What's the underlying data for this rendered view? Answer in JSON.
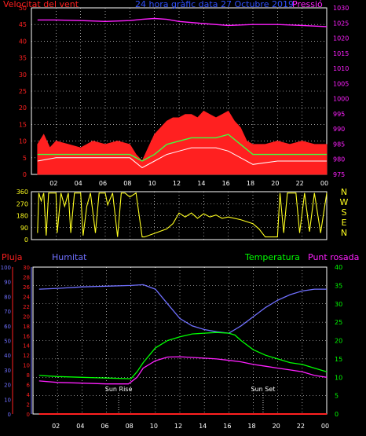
{
  "colors": {
    "wind": "#ff2020",
    "gust": "#ff2020",
    "wind_avg": "#40ff40",
    "wind_low": "#ffffff",
    "pressure": "#ff20ff",
    "direction": "#ffff20",
    "humidity": "#7070ff",
    "temperature": "#00ff00",
    "dewpoint": "#ff20ff",
    "rain": "#ff2020",
    "frame": "#ffffff",
    "grid": "#ffffff"
  },
  "chart_data": [
    {
      "type": "area",
      "title": "24 hora gràfic data 27 Octubre 2019",
      "ylabel_left": "Velocitat del vent",
      "ylabel_right": "Pressió",
      "x_ticks": [
        "02",
        "04",
        "06",
        "08",
        "10",
        "12",
        "14",
        "16",
        "18",
        "20",
        "22",
        "00"
      ],
      "y_left_ticks": [
        "0",
        "5",
        "10",
        "15",
        "20",
        "25",
        "30",
        "35",
        "40",
        "45",
        "50"
      ],
      "y_left_range": [
        0,
        50
      ],
      "y_right_ticks": [
        "975",
        "980",
        "985",
        "990",
        "995",
        "1000",
        "1005",
        "1010",
        "1015",
        "1020",
        "1025",
        "1030"
      ],
      "y_right_range": [
        975,
        1030
      ],
      "grid": true,
      "series": [
        {
          "name": "Pressió",
          "type": "line",
          "points": [
            [
              0.5,
              1026.0
            ],
            [
              2,
              1026.0
            ],
            [
              4,
              1025.8
            ],
            [
              6,
              1025.5
            ],
            [
              8,
              1025.8
            ],
            [
              9,
              1026.2
            ],
            [
              10,
              1026.5
            ],
            [
              11,
              1026.2
            ],
            [
              12,
              1025.5
            ],
            [
              14,
              1024.8
            ],
            [
              16,
              1024.2
            ],
            [
              18,
              1024.5
            ],
            [
              20,
              1024.5
            ],
            [
              22,
              1024.2
            ],
            [
              24,
              1023.8
            ]
          ]
        },
        {
          "name": "gust",
          "type": "area",
          "points": [
            [
              0.5,
              9
            ],
            [
              1,
              12
            ],
            [
              1.5,
              8
            ],
            [
              2,
              10
            ],
            [
              3,
              9
            ],
            [
              4,
              8
            ],
            [
              5,
              10
            ],
            [
              6,
              9
            ],
            [
              7,
              10
            ],
            [
              8,
              9
            ],
            [
              8.5,
              6
            ],
            [
              9,
              4
            ],
            [
              9.5,
              8
            ],
            [
              10,
              12
            ],
            [
              10.5,
              14
            ],
            [
              11,
              16
            ],
            [
              11.5,
              17
            ],
            [
              12,
              17
            ],
            [
              12.5,
              18
            ],
            [
              13,
              18
            ],
            [
              13.5,
              17
            ],
            [
              14,
              19
            ],
            [
              14.5,
              18
            ],
            [
              15,
              17
            ],
            [
              15.5,
              18
            ],
            [
              16,
              19
            ],
            [
              16.5,
              16
            ],
            [
              17,
              14
            ],
            [
              17.5,
              10
            ],
            [
              18,
              9
            ],
            [
              19,
              9
            ],
            [
              20,
              10
            ],
            [
              21,
              9
            ],
            [
              22,
              10
            ],
            [
              23,
              9
            ],
            [
              24,
              9
            ]
          ]
        },
        {
          "name": "average",
          "type": "line",
          "points": [
            [
              0.5,
              6
            ],
            [
              2,
              6
            ],
            [
              4,
              6
            ],
            [
              6,
              6
            ],
            [
              8,
              6
            ],
            [
              9,
              4
            ],
            [
              10,
              6
            ],
            [
              11,
              9
            ],
            [
              12,
              10
            ],
            [
              13,
              11
            ],
            [
              14,
              11
            ],
            [
              15,
              11
            ],
            [
              16,
              12
            ],
            [
              17,
              9
            ],
            [
              18,
              6
            ],
            [
              20,
              6
            ],
            [
              22,
              6
            ],
            [
              24,
              6
            ]
          ]
        },
        {
          "name": "low",
          "type": "line",
          "points": [
            [
              0.5,
              4
            ],
            [
              2,
              5
            ],
            [
              4,
              5
            ],
            [
              6,
              5
            ],
            [
              8,
              5
            ],
            [
              9,
              2
            ],
            [
              10,
              4
            ],
            [
              11,
              6
            ],
            [
              12,
              7
            ],
            [
              13,
              8
            ],
            [
              14,
              8
            ],
            [
              15,
              8
            ],
            [
              16,
              7
            ],
            [
              17,
              5
            ],
            [
              18,
              3
            ],
            [
              20,
              4
            ],
            [
              22,
              4
            ],
            [
              24,
              4
            ]
          ]
        }
      ]
    },
    {
      "type": "line",
      "ylabel_right": "N W S E N",
      "right_labels": [
        "N",
        "W",
        "S",
        "E",
        "N"
      ],
      "y_ticks": [
        "0",
        "90",
        "180",
        "270",
        "360"
      ],
      "y_range": [
        0,
        360
      ],
      "grid": true,
      "series": [
        {
          "name": "direction",
          "points": [
            [
              0.5,
              50
            ],
            [
              0.6,
              350
            ],
            [
              0.8,
              290
            ],
            [
              1.0,
              350
            ],
            [
              1.2,
              30
            ],
            [
              1.4,
              350
            ],
            [
              2.0,
              350
            ],
            [
              2.1,
              50
            ],
            [
              2.4,
              350
            ],
            [
              2.7,
              250
            ],
            [
              3.0,
              350
            ],
            [
              3.2,
              50
            ],
            [
              3.5,
              350
            ],
            [
              4.0,
              350
            ],
            [
              4.2,
              30
            ],
            [
              4.5,
              250
            ],
            [
              4.8,
              350
            ],
            [
              5.2,
              50
            ],
            [
              5.5,
              350
            ],
            [
              6.0,
              350
            ],
            [
              6.2,
              260
            ],
            [
              6.6,
              350
            ],
            [
              7.0,
              20
            ],
            [
              7.3,
              350
            ],
            [
              7.6,
              350
            ],
            [
              8.0,
              320
            ],
            [
              8.5,
              350
            ],
            [
              9.0,
              20
            ],
            [
              9.2,
              20
            ],
            [
              11.0,
              80
            ],
            [
              11.5,
              120
            ],
            [
              12.0,
              200
            ],
            [
              12.5,
              170
            ],
            [
              13.0,
              200
            ],
            [
              13.5,
              160
            ],
            [
              14.0,
              195
            ],
            [
              14.5,
              170
            ],
            [
              15.0,
              185
            ],
            [
              15.5,
              160
            ],
            [
              16.0,
              170
            ],
            [
              17.0,
              150
            ],
            [
              18.0,
              120
            ],
            [
              18.5,
              80
            ],
            [
              19.0,
              20
            ],
            [
              20.0,
              20
            ],
            [
              20.2,
              350
            ],
            [
              20.5,
              50
            ],
            [
              20.8,
              350
            ],
            [
              21.5,
              350
            ],
            [
              21.8,
              50
            ],
            [
              22.2,
              350
            ],
            [
              22.6,
              60
            ],
            [
              23.0,
              350
            ],
            [
              23.5,
              50
            ],
            [
              24.0,
              350
            ]
          ]
        }
      ]
    },
    {
      "type": "line",
      "labels": {
        "rain": "Pluja",
        "humidity": "Humitat",
        "temperature": "Temperatura",
        "dewpoint": "Punt rosada"
      },
      "rain_ticks": [
        "0",
        "10",
        "20",
        "30",
        "40",
        "50",
        "60",
        "70",
        "80",
        "90",
        "100"
      ],
      "humidity_ticks": [
        "0",
        "2",
        "4",
        "6",
        "8",
        "10",
        "12",
        "14",
        "16",
        "18",
        "20",
        "22",
        "24",
        "26",
        "28",
        "30"
      ],
      "temperature_ticks": [
        "0",
        "5",
        "10",
        "15",
        "20",
        "25",
        "30",
        "35",
        "40"
      ],
      "temp_range": [
        0,
        40
      ],
      "x_ticks": [
        "02",
        "04",
        "06",
        "08",
        "10",
        "12",
        "14",
        "16",
        "18",
        "20",
        "22",
        "00"
      ],
      "annotations": [
        {
          "label": "Sun Rise",
          "x": 7.0
        },
        {
          "label": "Sun Set",
          "x": 18.8
        }
      ],
      "grid": true,
      "series": [
        {
          "name": "Humitat",
          "points": [
            [
              0.5,
              34.0
            ],
            [
              2,
              34.2
            ],
            [
              4,
              34.6
            ],
            [
              6,
              34.8
            ],
            [
              8,
              35.0
            ],
            [
              9,
              35.2
            ],
            [
              10,
              34.0
            ],
            [
              11,
              30.0
            ],
            [
              12,
              26.0
            ],
            [
              13,
              24.0
            ],
            [
              14,
              23.0
            ],
            [
              15,
              22.4
            ],
            [
              16,
              22.0
            ],
            [
              16.5,
              23.0
            ],
            [
              17,
              24.0
            ],
            [
              18,
              26.5
            ],
            [
              19,
              29.0
            ],
            [
              20,
              31.0
            ],
            [
              21,
              32.5
            ],
            [
              22,
              33.5
            ],
            [
              23,
              34.0
            ],
            [
              24,
              34.0
            ]
          ]
        },
        {
          "name": "Temperatura",
          "points": [
            [
              0.5,
              10.5
            ],
            [
              2,
              10.2
            ],
            [
              4,
              10.0
            ],
            [
              6,
              9.8
            ],
            [
              8,
              9.6
            ],
            [
              8.5,
              11.5
            ],
            [
              9,
              14.0
            ],
            [
              10,
              18.0
            ],
            [
              11,
              20.0
            ],
            [
              12,
              21.0
            ],
            [
              13,
              21.8
            ],
            [
              14,
              22.0
            ],
            [
              15,
              22.2
            ],
            [
              16,
              22.0
            ],
            [
              16.5,
              21.5
            ],
            [
              17,
              20.0
            ],
            [
              18,
              17.5
            ],
            [
              19,
              16.0
            ],
            [
              20,
              15.0
            ],
            [
              21,
              14.0
            ],
            [
              22,
              13.5
            ],
            [
              23,
              12.5
            ],
            [
              24,
              11.5
            ]
          ]
        },
        {
          "name": "Punt rosada",
          "points": [
            [
              0.5,
              9.0
            ],
            [
              2,
              8.6
            ],
            [
              4,
              8.4
            ],
            [
              6,
              8.2
            ],
            [
              7.8,
              8.2
            ],
            [
              8.5,
              10.0
            ],
            [
              9,
              12.5
            ],
            [
              10,
              14.5
            ],
            [
              11,
              15.5
            ],
            [
              12,
              15.6
            ],
            [
              13,
              15.4
            ],
            [
              14,
              15.2
            ],
            [
              15,
              15.0
            ],
            [
              16,
              14.6
            ],
            [
              17,
              14.2
            ],
            [
              18,
              13.5
            ],
            [
              19,
              13.0
            ],
            [
              20,
              12.5
            ],
            [
              21,
              12.0
            ],
            [
              22,
              11.5
            ],
            [
              23,
              10.5
            ],
            [
              24,
              10.0
            ]
          ]
        },
        {
          "name": "Pluja",
          "points": [
            [
              0.5,
              0
            ],
            [
              24,
              0
            ]
          ]
        }
      ]
    }
  ]
}
